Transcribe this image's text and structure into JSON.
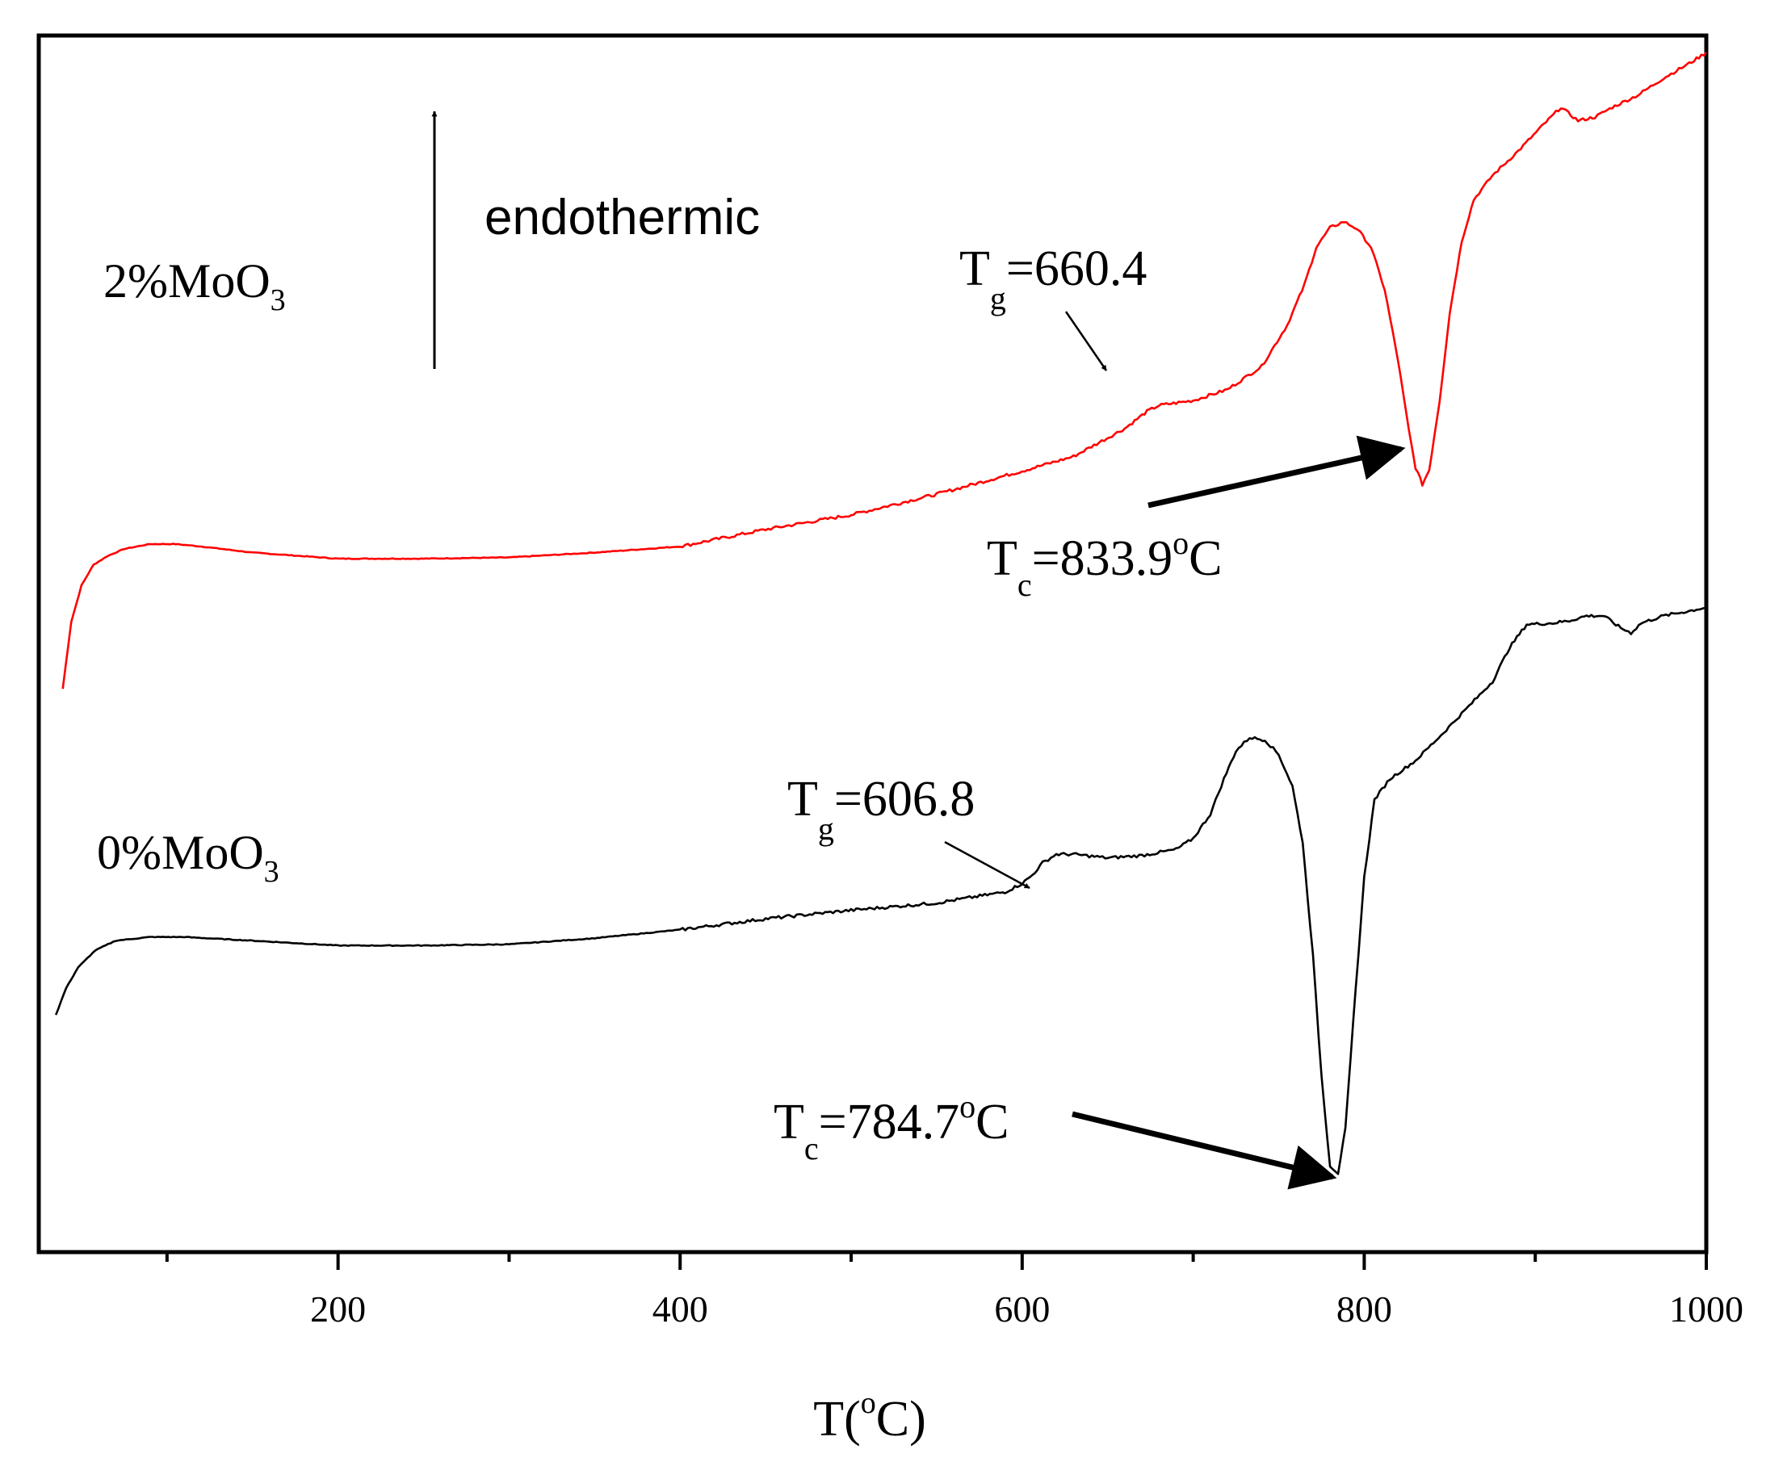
{
  "chart_data": {
    "type": "line",
    "title": "",
    "xlabel": "T(°C)",
    "xlabel_parts": {
      "main": "T(",
      "sup": "o",
      "end": "C)"
    },
    "ylabel": "",
    "xlim": [
      25,
      1000
    ],
    "ylim": [
      0,
      100
    ],
    "x_major_ticks": [
      200,
      400,
      600,
      800,
      1000
    ],
    "x_tick_labels": [
      "200",
      "400",
      "600",
      "800",
      "1000"
    ],
    "x_minor_ticks": [
      100,
      300,
      500,
      700,
      900
    ],
    "grid": false,
    "series": [
      {
        "name": "2%MoO3",
        "label_main": "2%MoO",
        "label_sub": "3",
        "color": "#ff0000",
        "points": [
          [
            39,
            46.3
          ],
          [
            44,
            51.8
          ],
          [
            50,
            54.8
          ],
          [
            57,
            56.5
          ],
          [
            65,
            57.2
          ],
          [
            75,
            57.8
          ],
          [
            90,
            58.2
          ],
          [
            105,
            58.2
          ],
          [
            120,
            58.0
          ],
          [
            150,
            57.5
          ],
          [
            200,
            57.0
          ],
          [
            250,
            57.0
          ],
          [
            300,
            57.1
          ],
          [
            350,
            57.5
          ],
          [
            400,
            58.0
          ],
          [
            450,
            59.4
          ],
          [
            500,
            60.6
          ],
          [
            550,
            62.3
          ],
          [
            600,
            64.2
          ],
          [
            630,
            65.4
          ],
          [
            660,
            67.7
          ],
          [
            673,
            69.1
          ],
          [
            680,
            69.6
          ],
          [
            690,
            69.8
          ],
          [
            700,
            70.0
          ],
          [
            720,
            70.9
          ],
          [
            740,
            72.8
          ],
          [
            755,
            76.2
          ],
          [
            765,
            79.5
          ],
          [
            772,
            82.6
          ],
          [
            780,
            84.2
          ],
          [
            788,
            84.7
          ],
          [
            796,
            84.1
          ],
          [
            804,
            82.6
          ],
          [
            812,
            79.1
          ],
          [
            820,
            73.1
          ],
          [
            826,
            67.6
          ],
          [
            830,
            64.5
          ],
          [
            834,
            63.1
          ],
          [
            838,
            64.3
          ],
          [
            844,
            69.9
          ],
          [
            850,
            77.2
          ],
          [
            857,
            83.1
          ],
          [
            864,
            86.5
          ],
          [
            875,
            88.5
          ],
          [
            890,
            90.5
          ],
          [
            905,
            92.7
          ],
          [
            915,
            94.1
          ],
          [
            925,
            93.0
          ],
          [
            935,
            93.3
          ],
          [
            945,
            94.1
          ],
          [
            960,
            95.1
          ],
          [
            975,
            96.5
          ],
          [
            990,
            97.7
          ],
          [
            1000,
            98.6
          ]
        ]
      },
      {
        "name": "0%MoO3",
        "label_main": "0%MoO",
        "label_sub": "3",
        "color": "#000000",
        "points": [
          [
            35,
            19.5
          ],
          [
            41,
            21.7
          ],
          [
            48,
            23.4
          ],
          [
            58,
            24.8
          ],
          [
            70,
            25.6
          ],
          [
            90,
            25.9
          ],
          [
            110,
            25.9
          ],
          [
            150,
            25.6
          ],
          [
            200,
            25.2
          ],
          [
            250,
            25.2
          ],
          [
            300,
            25.3
          ],
          [
            350,
            25.8
          ],
          [
            400,
            26.5
          ],
          [
            450,
            27.4
          ],
          [
            500,
            28.1
          ],
          [
            550,
            28.7
          ],
          [
            590,
            29.6
          ],
          [
            600,
            30.3
          ],
          [
            606,
            31.0
          ],
          [
            612,
            32.0
          ],
          [
            620,
            32.7
          ],
          [
            630,
            32.7
          ],
          [
            650,
            32.4
          ],
          [
            670,
            32.6
          ],
          [
            690,
            33.1
          ],
          [
            700,
            34.0
          ],
          [
            710,
            36.0
          ],
          [
            718,
            38.9
          ],
          [
            725,
            41.2
          ],
          [
            733,
            42.3
          ],
          [
            742,
            42.1
          ],
          [
            750,
            40.9
          ],
          [
            758,
            38.3
          ],
          [
            764,
            33.7
          ],
          [
            770,
            24.4
          ],
          [
            775,
            14.5
          ],
          [
            780,
            7.1
          ],
          [
            784.7,
            6.5
          ],
          [
            789,
            10.1
          ],
          [
            795,
            21.6
          ],
          [
            800,
            30.8
          ],
          [
            806,
            37.2
          ],
          [
            815,
            38.9
          ],
          [
            830,
            40.4
          ],
          [
            845,
            42.5
          ],
          [
            860,
            44.7
          ],
          [
            875,
            46.9
          ],
          [
            885,
            49.7
          ],
          [
            895,
            51.6
          ],
          [
            910,
            51.7
          ],
          [
            920,
            51.9
          ],
          [
            930,
            52.3
          ],
          [
            940,
            52.3
          ],
          [
            950,
            51.3
          ],
          [
            956,
            50.9
          ],
          [
            962,
            51.7
          ],
          [
            975,
            52.3
          ],
          [
            990,
            52.7
          ],
          [
            1000,
            53.0
          ]
        ]
      }
    ],
    "annotations": [
      {
        "id": "endothermic",
        "text": "endothermic"
      },
      {
        "id": "tg-2",
        "main": "T",
        "sub": "g",
        "value": "=660.4",
        "target": [
          660,
          67.7
        ]
      },
      {
        "id": "tc-2",
        "main": "T",
        "sub": "c",
        "value": "=833.9",
        "sup": "o",
        "unit": "C",
        "target": [
          834,
          63.1
        ]
      },
      {
        "id": "tg-0",
        "main": "T",
        "sub": "g",
        "value": "=606.8",
        "target": [
          606.8,
          31.0
        ]
      },
      {
        "id": "tc-0",
        "main": "T",
        "sub": "c",
        "value": "=784.7",
        "sup": "o",
        "unit": "C",
        "target": [
          784.7,
          6.5
        ]
      }
    ]
  }
}
